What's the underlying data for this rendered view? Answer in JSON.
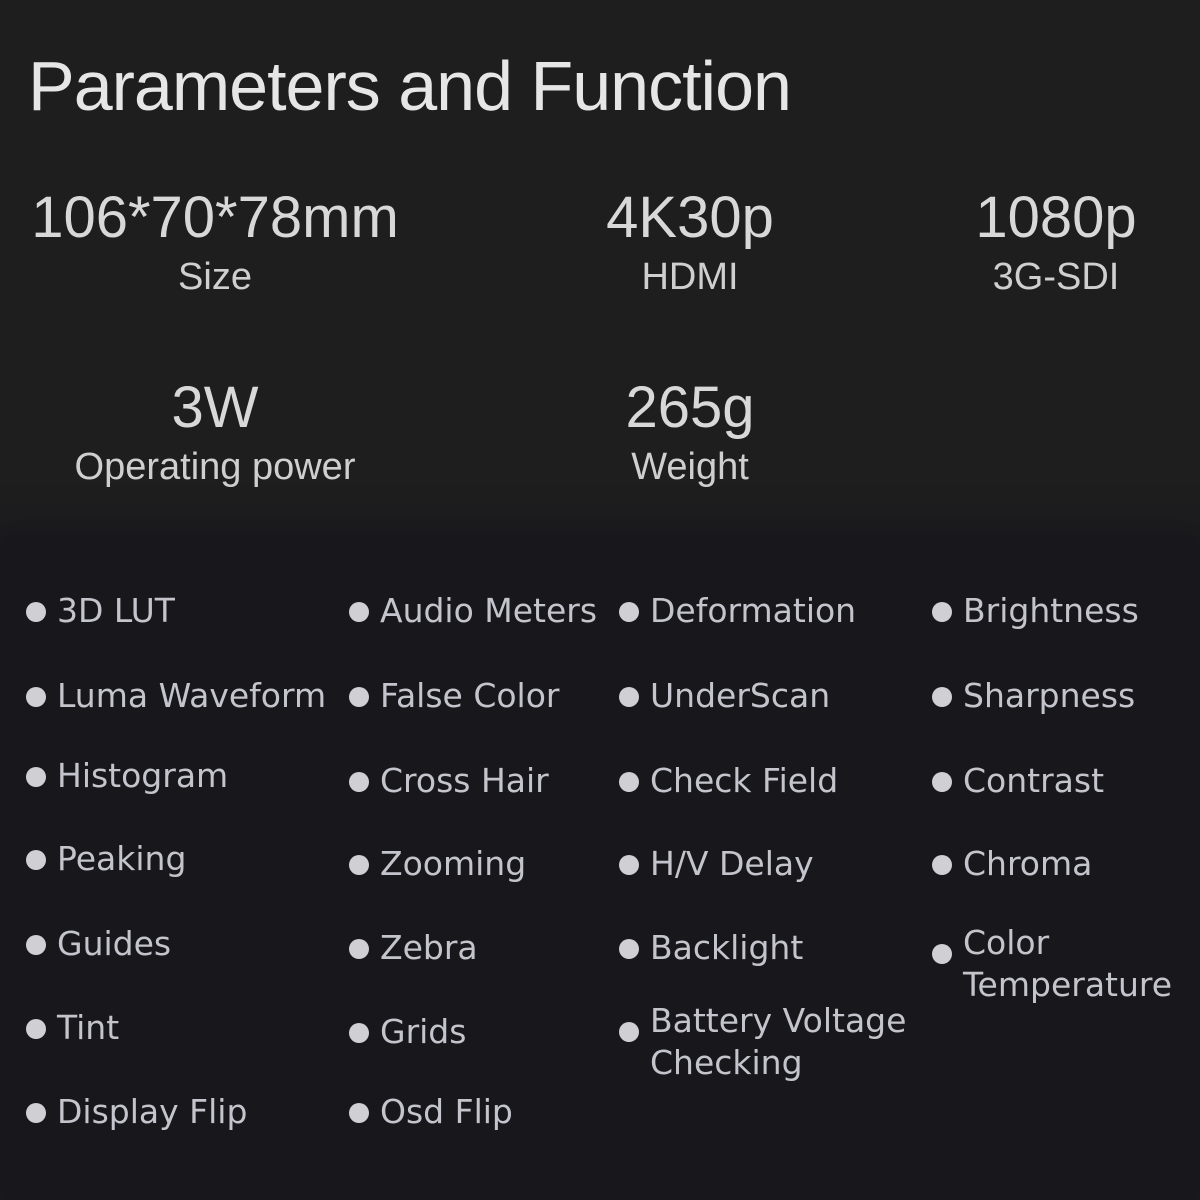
{
  "title": "Parameters and Function",
  "stats": [
    {
      "value": "106*70*78mm",
      "label": "Size"
    },
    {
      "value": "4K30p",
      "label": "HDMI"
    },
    {
      "value": "1080p",
      "label": "3G-SDI"
    },
    {
      "value": "3W",
      "label": "Operating power"
    },
    {
      "value": "265g",
      "label": "Weight"
    }
  ],
  "features": [
    [
      "3D LUT",
      "Luma Waveform",
      "Histogram",
      "Peaking",
      "Guides",
      "Tint",
      "Display Flip"
    ],
    [
      "Audio Meters",
      "False Color",
      "Cross Hair",
      "Zooming",
      "Zebra",
      "Grids",
      "Osd Flip"
    ],
    [
      "Deformation",
      "UnderScan",
      "Check Field",
      "H/V Delay",
      "Backlight",
      "Battery Voltage Checking"
    ],
    [
      "Brightness",
      "Sharpness",
      "Contrast",
      "Chroma",
      "Color Temperature"
    ]
  ],
  "colors": {
    "background": "#1e1e1f",
    "panel": "#17171c",
    "text": "#c4c4cc",
    "bullet": "#cfcfd4"
  }
}
